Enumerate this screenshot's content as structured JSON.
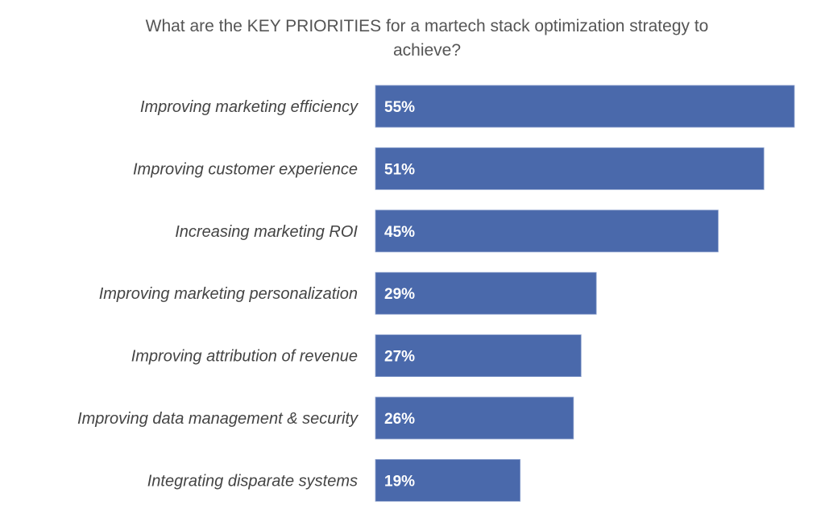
{
  "chart_data": {
    "type": "bar",
    "orientation": "horizontal",
    "title": "What are the KEY PRIORITIES for a martech stack optimization strategy to achieve?",
    "categories": [
      "Improving marketing efficiency",
      "Improving customer experience",
      "Increasing marketing ROI",
      "Improving marketing personalization",
      "Improving attribution of revenue",
      "Improving data management & security",
      "Integrating disparate systems"
    ],
    "values": [
      55,
      51,
      45,
      29,
      27,
      26,
      19
    ],
    "labels": [
      "55%",
      "51%",
      "45%",
      "29%",
      "27%",
      "26%",
      "19%"
    ],
    "unit": "%",
    "xlim": [
      0,
      55
    ],
    "grid": false,
    "legend": "none",
    "bar_color": "#4a69ab"
  }
}
